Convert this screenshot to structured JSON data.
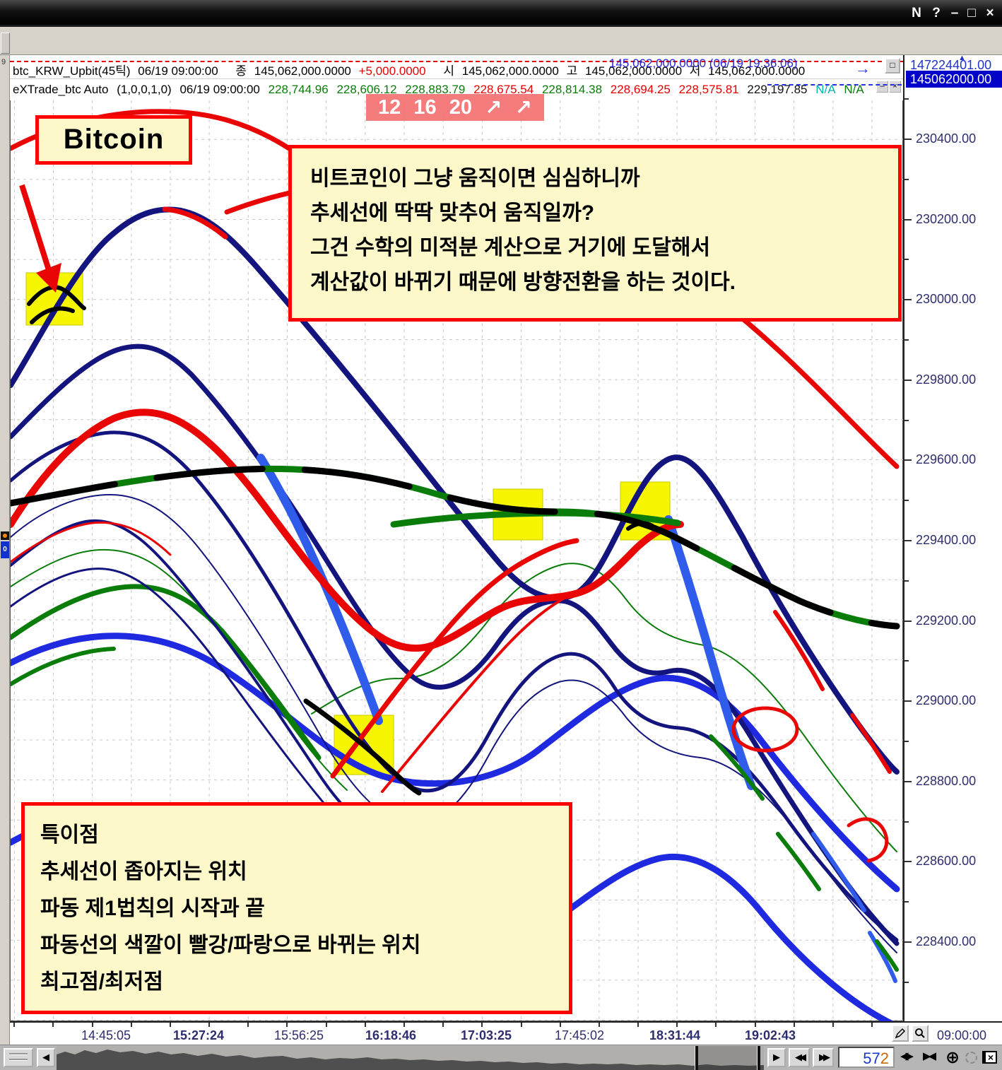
{
  "window": {
    "titlebar_icons": [
      "N",
      "?",
      "–",
      "□",
      "×"
    ]
  },
  "quote_bar": {
    "symbol": "btc_KRW_Upbit(45틱)",
    "datetime": "06/19 09:00:00",
    "close_label": "종",
    "close_value": "145,062,000.0000",
    "change_value": "+5,000.0000",
    "open_label": "시",
    "open_value": "145,062,000.0000",
    "high_label": "고",
    "high_value": "145,062,000.0000",
    "low_label": "저",
    "low_value": "145,062,000.0000",
    "overlay_value": "145,062,000.0000 (06/19 19:36:06)",
    "overlay_arrow": "→",
    "restore_icon": "□"
  },
  "indicator_bar": {
    "name": "eXTrade_btc Auto",
    "params": "(1,0,0,1,0)",
    "datetime": "06/19 09:00:00",
    "values": [
      {
        "text": "228,744.96",
        "color": "green"
      },
      {
        "text": "228,606.12",
        "color": "green"
      },
      {
        "text": "228,883.79",
        "color": "green"
      },
      {
        "text": "228,675.54",
        "color": "red"
      },
      {
        "text": "228,814.38",
        "color": "green"
      },
      {
        "text": "228,694.25",
        "color": "red"
      },
      {
        "text": "228,575.81",
        "color": "red"
      },
      {
        "text": "229,197.85",
        "color": "black"
      },
      {
        "text": "N/A",
        "color": "cyan"
      },
      {
        "text": "N/A",
        "color": "green"
      }
    ],
    "minimize_icon": "–",
    "close_icon": "×"
  },
  "signal_box": {
    "v1": "12",
    "v2": "16",
    "v3": "20",
    "arrow1": "↗",
    "arrow2": "↗"
  },
  "bitcoin_label": "Bitcoin",
  "annotation_top": {
    "line1": "비트코인이 그냥 움직이면 심심하니까",
    "line2": "추세선에 딱딱 맞추어 움직일까?",
    "line3": "그건 수학의 미적분 계산으로 거기에 도달해서",
    "line4": "계산값이 바뀌기 때문에 방향전환을 하는 것이다."
  },
  "annotation_bottom": {
    "line1": "특이점",
    "line2": "추세선이 좁아지는 위치",
    "line3": "파동 제1법칙의 시작과 끝",
    "line4": "파동선의 색깔이 빨강/파랑으로 바뀌는 위치",
    "line5": "최고점/최저점"
  },
  "price_axis": {
    "top_value": "147224401.00",
    "top_marker": "▲",
    "current_value": "145062000.00",
    "labels": [
      "230400.00",
      "230200.00",
      "230000.00",
      "229800.00",
      "229600.00",
      "229400.00",
      "229200.00",
      "229000.00",
      "228800.00",
      "228600.00",
      "228400.00"
    ]
  },
  "time_axis": {
    "labels": [
      "14:45:05",
      "15:27:24",
      "15:56:25",
      "16:18:46",
      "17:03:25",
      "17:45:02",
      "18:31:44",
      "19:02:43"
    ],
    "origin_label": "09:00:00"
  },
  "navigator": {
    "left_arrow": "◀",
    "right_arrow": "▶",
    "fast_back": "◀◀",
    "fast_fwd": "▶▶",
    "counter_main": "57",
    "counter_last": "2",
    "expand_lr": "◀▶",
    "collapse_rl": "▶◀",
    "zoom_in": "⊕",
    "fit_glyph": "✚",
    "close_glyph": "×"
  },
  "colors": {
    "red_line": "#ea0505",
    "navy_line": "#14147e",
    "royal_line": "#2f5cea",
    "blue_envelope": "#1f2ae0",
    "green_line": "#0a7c0a",
    "black_line": "#000000",
    "highlight": "#f6f600",
    "note_bg": "#fcf8c9",
    "note_border": "#fe0202",
    "current_price_bg": "#0202c8"
  }
}
